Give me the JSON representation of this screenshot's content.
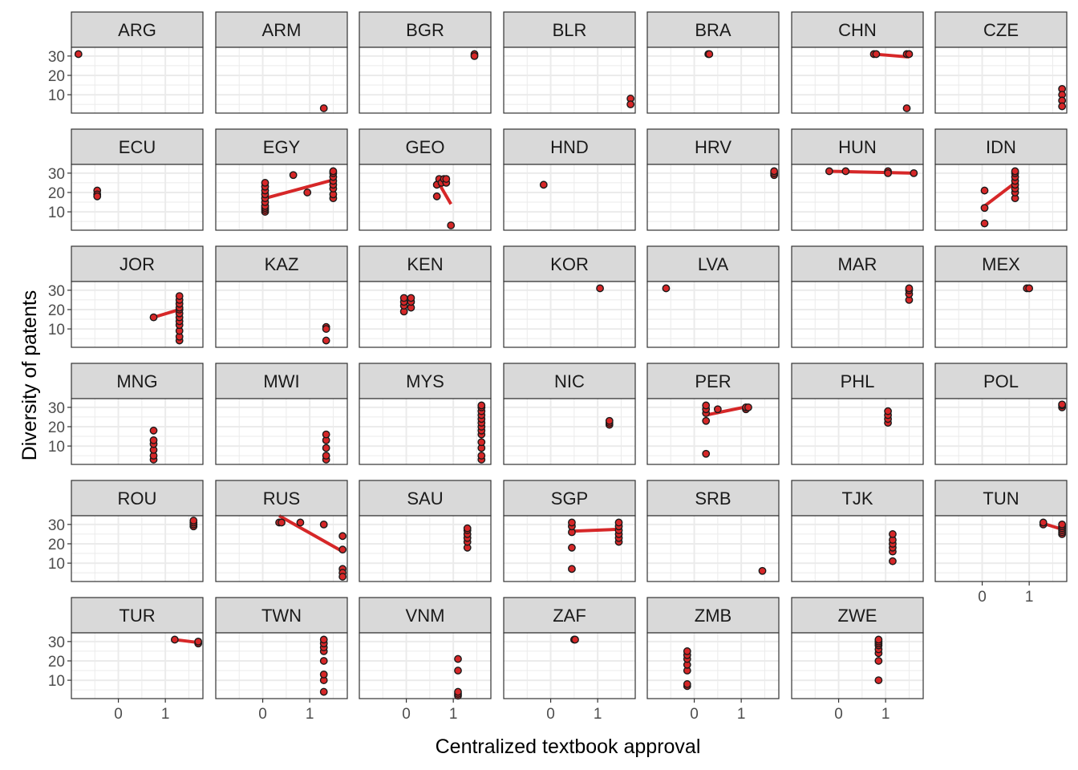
{
  "chart_data": {
    "type": "scatter",
    "xlabel": "Centralized textbook approval",
    "ylabel": "Diversity of patents",
    "xlim": [
      -1.0,
      1.8
    ],
    "ylim": [
      0.5,
      34.5
    ],
    "x_ticks": [
      0,
      1
    ],
    "y_ticks": [
      10,
      20,
      30
    ],
    "grid": true,
    "colors": {
      "point_fill": "#d62728",
      "point_stroke": "#1a1a1a",
      "trend_line": "#d62728",
      "strip_fill": "#d9d9d9",
      "panel_border": "#333333",
      "grid": "#ebebeb"
    },
    "facets": [
      {
        "label": "ARG",
        "points": [
          [
            -0.85,
            31
          ]
        ],
        "trend": null
      },
      {
        "label": "ARM",
        "points": [
          [
            1.3,
            3
          ]
        ],
        "trend": null
      },
      {
        "label": "BGR",
        "points": [
          [
            1.45,
            31
          ],
          [
            1.45,
            30
          ]
        ],
        "trend": null
      },
      {
        "label": "BLR",
        "points": [
          [
            1.7,
            8
          ],
          [
            1.7,
            5
          ]
        ],
        "trend": null
      },
      {
        "label": "BRA",
        "points": [
          [
            0.3,
            31
          ],
          [
            0.32,
            31
          ]
        ],
        "trend": null
      },
      {
        "label": "CHN",
        "points": [
          [
            0.75,
            31
          ],
          [
            0.8,
            31
          ],
          [
            1.45,
            31
          ],
          [
            1.5,
            31
          ],
          [
            1.45,
            3
          ]
        ],
        "trend": [
          [
            0.75,
            31
          ],
          [
            1.5,
            29.5
          ]
        ]
      },
      {
        "label": "CZE",
        "points": [
          [
            1.7,
            13
          ],
          [
            1.7,
            10
          ],
          [
            1.7,
            7
          ],
          [
            1.7,
            4
          ]
        ],
        "trend": null
      },
      {
        "label": "ECU",
        "points": [
          [
            -0.45,
            21
          ],
          [
            -0.45,
            19
          ],
          [
            -0.45,
            18
          ]
        ],
        "trend": null
      },
      {
        "label": "EGY",
        "points": [
          [
            0.05,
            10
          ],
          [
            0.05,
            11
          ],
          [
            0.05,
            12
          ],
          [
            0.05,
            13
          ],
          [
            0.05,
            15
          ],
          [
            0.05,
            17
          ],
          [
            0.05,
            19
          ],
          [
            0.05,
            21
          ],
          [
            0.05,
            23
          ],
          [
            0.05,
            25
          ],
          [
            0.65,
            29
          ],
          [
            0.95,
            20
          ],
          [
            1.5,
            17
          ],
          [
            1.5,
            19
          ],
          [
            1.5,
            22
          ],
          [
            1.5,
            24
          ],
          [
            1.5,
            26
          ],
          [
            1.5,
            28
          ],
          [
            1.5,
            30
          ],
          [
            1.5,
            31
          ]
        ],
        "trend": [
          [
            0.05,
            17
          ],
          [
            1.5,
            26.5
          ]
        ]
      },
      {
        "label": "GEO",
        "points": [
          [
            0.65,
            18
          ],
          [
            0.65,
            24
          ],
          [
            0.7,
            27
          ],
          [
            0.75,
            25
          ],
          [
            0.8,
            27
          ],
          [
            0.85,
            25
          ],
          [
            0.85,
            27
          ],
          [
            0.95,
            3
          ]
        ],
        "trend": [
          [
            0.65,
            26.5
          ],
          [
            0.95,
            14
          ]
        ]
      },
      {
        "label": "HND",
        "points": [
          [
            -0.15,
            24
          ]
        ],
        "trend": null
      },
      {
        "label": "HRV",
        "points": [
          [
            1.7,
            29
          ],
          [
            1.7,
            30
          ],
          [
            1.7,
            31
          ]
        ],
        "trend": null
      },
      {
        "label": "HUN",
        "points": [
          [
            -0.2,
            31
          ],
          [
            0.15,
            31
          ],
          [
            1.05,
            31
          ],
          [
            1.05,
            30
          ],
          [
            1.6,
            30
          ]
        ],
        "trend": [
          [
            -0.2,
            31
          ],
          [
            1.6,
            30
          ]
        ]
      },
      {
        "label": "IDN",
        "points": [
          [
            0.05,
            21
          ],
          [
            0.05,
            12
          ],
          [
            0.05,
            4
          ],
          [
            0.7,
            17
          ],
          [
            0.7,
            20
          ],
          [
            0.7,
            22
          ],
          [
            0.7,
            24
          ],
          [
            0.7,
            26
          ],
          [
            0.7,
            28
          ],
          [
            0.7,
            30
          ],
          [
            0.7,
            31
          ]
        ],
        "trend": [
          [
            0.05,
            13
          ],
          [
            0.7,
            25
          ]
        ]
      },
      {
        "label": "JOR",
        "points": [
          [
            0.75,
            16
          ],
          [
            1.3,
            4
          ],
          [
            1.3,
            6
          ],
          [
            1.3,
            9
          ],
          [
            1.3,
            12
          ],
          [
            1.3,
            14
          ],
          [
            1.3,
            16
          ],
          [
            1.3,
            18
          ],
          [
            1.3,
            20
          ],
          [
            1.3,
            21
          ],
          [
            1.3,
            23
          ],
          [
            1.3,
            25
          ],
          [
            1.3,
            27
          ]
        ],
        "trend": [
          [
            0.75,
            16
          ],
          [
            1.3,
            20
          ]
        ]
      },
      {
        "label": "KAZ",
        "points": [
          [
            1.35,
            11
          ],
          [
            1.35,
            10
          ],
          [
            1.35,
            4
          ]
        ],
        "trend": null
      },
      {
        "label": "KEN",
        "points": [
          [
            -0.05,
            19
          ],
          [
            -0.05,
            22
          ],
          [
            -0.05,
            24
          ],
          [
            -0.05,
            26
          ],
          [
            0.1,
            21
          ],
          [
            0.1,
            24
          ],
          [
            0.1,
            26
          ]
        ],
        "trend": null
      },
      {
        "label": "KOR",
        "points": [
          [
            1.05,
            31
          ]
        ],
        "trend": null
      },
      {
        "label": "LVA",
        "points": [
          [
            -0.6,
            31
          ]
        ],
        "trend": null
      },
      {
        "label": "MAR",
        "points": [
          [
            1.5,
            25
          ],
          [
            1.5,
            28
          ],
          [
            1.5,
            30
          ],
          [
            1.5,
            31
          ]
        ],
        "trend": null
      },
      {
        "label": "MEX",
        "points": [
          [
            0.95,
            31
          ],
          [
            1.0,
            31
          ]
        ],
        "trend": null
      },
      {
        "label": "MNG",
        "points": [
          [
            0.75,
            3
          ],
          [
            0.75,
            5
          ],
          [
            0.75,
            8
          ],
          [
            0.75,
            11
          ],
          [
            0.75,
            13
          ],
          [
            0.75,
            18
          ]
        ],
        "trend": null
      },
      {
        "label": "MWI",
        "points": [
          [
            1.35,
            3
          ],
          [
            1.35,
            5
          ],
          [
            1.35,
            9
          ],
          [
            1.35,
            13
          ],
          [
            1.35,
            16
          ]
        ],
        "trend": null
      },
      {
        "label": "MYS",
        "points": [
          [
            1.6,
            3
          ],
          [
            1.6,
            5
          ],
          [
            1.6,
            9
          ],
          [
            1.6,
            12
          ],
          [
            1.6,
            16
          ],
          [
            1.6,
            18
          ],
          [
            1.6,
            20
          ],
          [
            1.6,
            22
          ],
          [
            1.6,
            24
          ],
          [
            1.6,
            26
          ],
          [
            1.6,
            28
          ],
          [
            1.6,
            30
          ],
          [
            1.6,
            31
          ]
        ],
        "trend": null
      },
      {
        "label": "NIC",
        "points": [
          [
            1.25,
            21
          ],
          [
            1.25,
            22
          ],
          [
            1.25,
            23
          ]
        ],
        "trend": null
      },
      {
        "label": "PER",
        "points": [
          [
            0.25,
            6
          ],
          [
            0.25,
            23
          ],
          [
            0.25,
            27
          ],
          [
            0.25,
            29
          ],
          [
            0.25,
            31
          ],
          [
            0.5,
            29
          ],
          [
            1.1,
            29
          ],
          [
            1.1,
            30
          ],
          [
            1.15,
            30
          ]
        ],
        "trend": [
          [
            0.25,
            26
          ],
          [
            1.15,
            30.5
          ]
        ]
      },
      {
        "label": "PHL",
        "points": [
          [
            1.05,
            22
          ],
          [
            1.05,
            24
          ],
          [
            1.05,
            26
          ],
          [
            1.05,
            28
          ]
        ],
        "trend": null
      },
      {
        "label": "POL",
        "points": [
          [
            1.7,
            30
          ],
          [
            1.7,
            31
          ],
          [
            1.7,
            31.5
          ]
        ],
        "trend": null
      },
      {
        "label": "ROU",
        "points": [
          [
            1.6,
            29
          ],
          [
            1.6,
            30
          ],
          [
            1.6,
            31
          ],
          [
            1.6,
            32
          ]
        ],
        "trend": null
      },
      {
        "label": "RUS",
        "points": [
          [
            0.35,
            31
          ],
          [
            0.4,
            31
          ],
          [
            0.8,
            31
          ],
          [
            1.3,
            30
          ],
          [
            1.7,
            24
          ],
          [
            1.7,
            17
          ],
          [
            1.7,
            7
          ],
          [
            1.7,
            5
          ],
          [
            1.7,
            3
          ]
        ],
        "trend": [
          [
            0.35,
            34.5
          ],
          [
            1.7,
            16
          ]
        ]
      },
      {
        "label": "SAU",
        "points": [
          [
            1.3,
            18
          ],
          [
            1.3,
            21
          ],
          [
            1.3,
            23
          ],
          [
            1.3,
            25
          ],
          [
            1.3,
            27
          ],
          [
            1.3,
            28
          ]
        ],
        "trend": null
      },
      {
        "label": "SGP",
        "points": [
          [
            0.45,
            7
          ],
          [
            0.45,
            18
          ],
          [
            0.45,
            26
          ],
          [
            0.45,
            29
          ],
          [
            0.45,
            31
          ],
          [
            1.45,
            21
          ],
          [
            1.45,
            23
          ],
          [
            1.45,
            25
          ],
          [
            1.45,
            27
          ],
          [
            1.45,
            29
          ],
          [
            1.45,
            31
          ]
        ],
        "trend": [
          [
            0.45,
            26.5
          ],
          [
            1.45,
            27.5
          ]
        ]
      },
      {
        "label": "SRB",
        "points": [
          [
            1.45,
            6
          ]
        ],
        "trend": null
      },
      {
        "label": "TJK",
        "points": [
          [
            1.15,
            11
          ],
          [
            1.15,
            16
          ],
          [
            1.15,
            18
          ],
          [
            1.15,
            20
          ],
          [
            1.15,
            22
          ],
          [
            1.15,
            25
          ]
        ],
        "trend": null
      },
      {
        "label": "TUN",
        "points": [
          [
            1.3,
            30
          ],
          [
            1.3,
            31
          ],
          [
            1.7,
            25
          ],
          [
            1.7,
            26
          ],
          [
            1.7,
            27
          ],
          [
            1.7,
            28
          ],
          [
            1.7,
            29
          ],
          [
            1.7,
            30
          ]
        ],
        "trend": [
          [
            1.3,
            30.5
          ],
          [
            1.7,
            27.5
          ]
        ]
      },
      {
        "label": "TUR",
        "points": [
          [
            1.2,
            31
          ],
          [
            1.7,
            29
          ],
          [
            1.7,
            30
          ]
        ],
        "trend": [
          [
            1.2,
            31
          ],
          [
            1.7,
            29.5
          ]
        ]
      },
      {
        "label": "TWN",
        "points": [
          [
            1.3,
            4
          ],
          [
            1.3,
            10
          ],
          [
            1.3,
            13
          ],
          [
            1.3,
            20
          ],
          [
            1.3,
            25
          ],
          [
            1.3,
            27
          ],
          [
            1.3,
            29
          ],
          [
            1.3,
            31
          ]
        ],
        "trend": null
      },
      {
        "label": "VNM",
        "points": [
          [
            1.1,
            2
          ],
          [
            1.1,
            3
          ],
          [
            1.1,
            4
          ],
          [
            1.1,
            15
          ],
          [
            1.1,
            21
          ]
        ],
        "trend": null
      },
      {
        "label": "ZAF",
        "points": [
          [
            0.5,
            31
          ],
          [
            0.52,
            31
          ]
        ],
        "trend": null
      },
      {
        "label": "ZMB",
        "points": [
          [
            -0.15,
            7
          ],
          [
            -0.15,
            8
          ],
          [
            -0.15,
            15
          ],
          [
            -0.15,
            18
          ],
          [
            -0.15,
            21
          ],
          [
            -0.15,
            23
          ],
          [
            -0.15,
            25
          ]
        ],
        "trend": null
      },
      {
        "label": "ZWE",
        "points": [
          [
            0.85,
            10
          ],
          [
            0.85,
            20
          ],
          [
            0.85,
            24
          ],
          [
            0.85,
            26
          ],
          [
            0.85,
            28
          ],
          [
            0.85,
            29
          ],
          [
            0.85,
            30
          ],
          [
            0.85,
            31
          ]
        ],
        "trend": null
      }
    ]
  }
}
